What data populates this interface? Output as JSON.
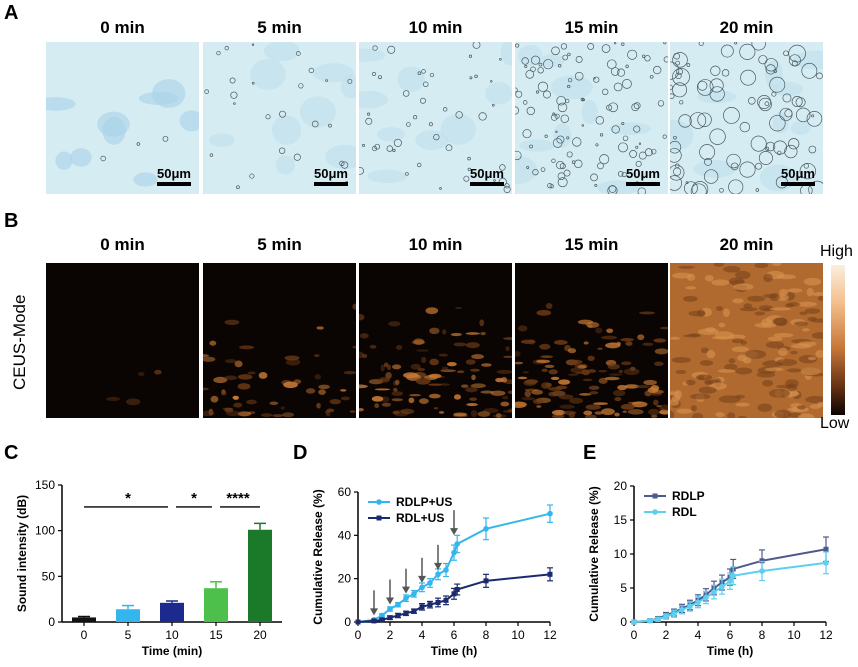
{
  "panelA": {
    "letter": "A",
    "times": [
      "0 min",
      "5 min",
      "10 min",
      "15 min",
      "20 min"
    ],
    "scale_bar": "50μm"
  },
  "panelB": {
    "letter": "B",
    "times": [
      "0 min",
      "5 min",
      "10 min",
      "15 min",
      "20 min"
    ],
    "side_label": "CEUS-Mode",
    "colorbar_high": "High",
    "colorbar_low": "Low"
  },
  "panelC": {
    "letter": "C",
    "significance": [
      "*",
      "*",
      "****"
    ]
  },
  "panelD": {
    "letter": "D"
  },
  "panelE": {
    "letter": "E"
  },
  "chart_data": [
    {
      "id": "C",
      "type": "bar",
      "categories": [
        "0",
        "5",
        "10",
        "15",
        "20"
      ],
      "values": [
        5,
        14,
        21,
        37,
        101
      ],
      "errors": [
        1,
        4,
        2,
        7,
        7
      ],
      "colors": [
        "#111111",
        "#33b6ee",
        "#1b2a8c",
        "#4cc04a",
        "#1a7a2a"
      ],
      "xlabel": "Time (min)",
      "ylabel": "Sound intensity (dB)",
      "ylim": [
        0,
        150
      ],
      "yticks": [
        0,
        50,
        100,
        150
      ]
    },
    {
      "id": "D",
      "type": "line",
      "xlabel": "Time (h)",
      "ylabel": "Cumulative Release (%)",
      "xlim": [
        0,
        12
      ],
      "ylim": [
        0,
        60
      ],
      "xticks": [
        0,
        2,
        4,
        6,
        8,
        10,
        12
      ],
      "yticks": [
        0,
        20,
        40,
        60
      ],
      "legend": "top-left",
      "arrows_at": [
        1,
        2,
        3,
        4,
        5,
        6
      ],
      "series": [
        {
          "name": "RDLP+US",
          "color": "#33b6ee",
          "x": [
            0,
            1,
            1.5,
            2,
            2.5,
            3,
            3.5,
            4,
            4.5,
            5,
            5.5,
            6,
            6.2,
            8,
            12
          ],
          "y": [
            0,
            1,
            3,
            6,
            8,
            11,
            13,
            16,
            18,
            22,
            24,
            32,
            36,
            43,
            50
          ],
          "err": [
            0,
            0.5,
            0.8,
            1,
            1,
            1.5,
            1.5,
            2,
            2,
            2.5,
            3,
            3.5,
            4,
            5,
            4
          ]
        },
        {
          "name": "RDL+US",
          "color": "#1b2a6e",
          "x": [
            0,
            1,
            1.5,
            2,
            2.5,
            3,
            3.5,
            4,
            4.5,
            5,
            5.5,
            6,
            6.2,
            8,
            12
          ],
          "y": [
            0,
            0.5,
            1,
            2,
            3,
            4,
            5,
            7,
            8,
            9,
            10,
            13,
            15,
            19,
            22
          ],
          "err": [
            0,
            0.3,
            0.5,
            0.8,
            1,
            1,
            1,
            1.5,
            1.5,
            2,
            2,
            2.5,
            2.5,
            3,
            3
          ]
        }
      ]
    },
    {
      "id": "E",
      "type": "line",
      "xlabel": "Time (h)",
      "ylabel": "Cumulative Release (%)",
      "xlim": [
        0,
        12
      ],
      "ylim": [
        0,
        20
      ],
      "xticks": [
        0,
        2,
        4,
        6,
        8,
        10,
        12
      ],
      "yticks": [
        0,
        5,
        10,
        15,
        20
      ],
      "legend": "top-left",
      "series": [
        {
          "name": "RDLP",
          "color": "#4f5a8c",
          "x": [
            0,
            1,
            1.5,
            2,
            2.5,
            3,
            3.5,
            4,
            4.5,
            5,
            5.5,
            6,
            6.2,
            8,
            12
          ],
          "y": [
            0,
            0.2,
            0.5,
            1,
            1.4,
            2,
            2.5,
            3.2,
            4,
            5,
            5.8,
            6.6,
            7.8,
            9,
            10.7
          ],
          "err": [
            0,
            0.2,
            0.3,
            0.4,
            0.5,
            0.6,
            0.7,
            0.8,
            0.9,
            1,
            1.1,
            1.2,
            1.4,
            1.6,
            1.8
          ]
        },
        {
          "name": "RDL",
          "color": "#5cd0f0",
          "x": [
            0,
            1,
            1.5,
            2,
            2.5,
            3,
            3.5,
            4,
            4.5,
            5,
            5.5,
            6,
            6.2,
            8,
            12
          ],
          "y": [
            0,
            0.2,
            0.4,
            0.8,
            1.2,
            1.8,
            2.3,
            2.9,
            3.6,
            4.4,
            5.2,
            6,
            6.8,
            7.5,
            8.7
          ],
          "err": [
            0,
            0.2,
            0.3,
            0.4,
            0.5,
            0.6,
            0.7,
            0.8,
            0.9,
            1,
            1.1,
            1.2,
            1.3,
            1.4,
            1.6
          ]
        }
      ]
    }
  ]
}
